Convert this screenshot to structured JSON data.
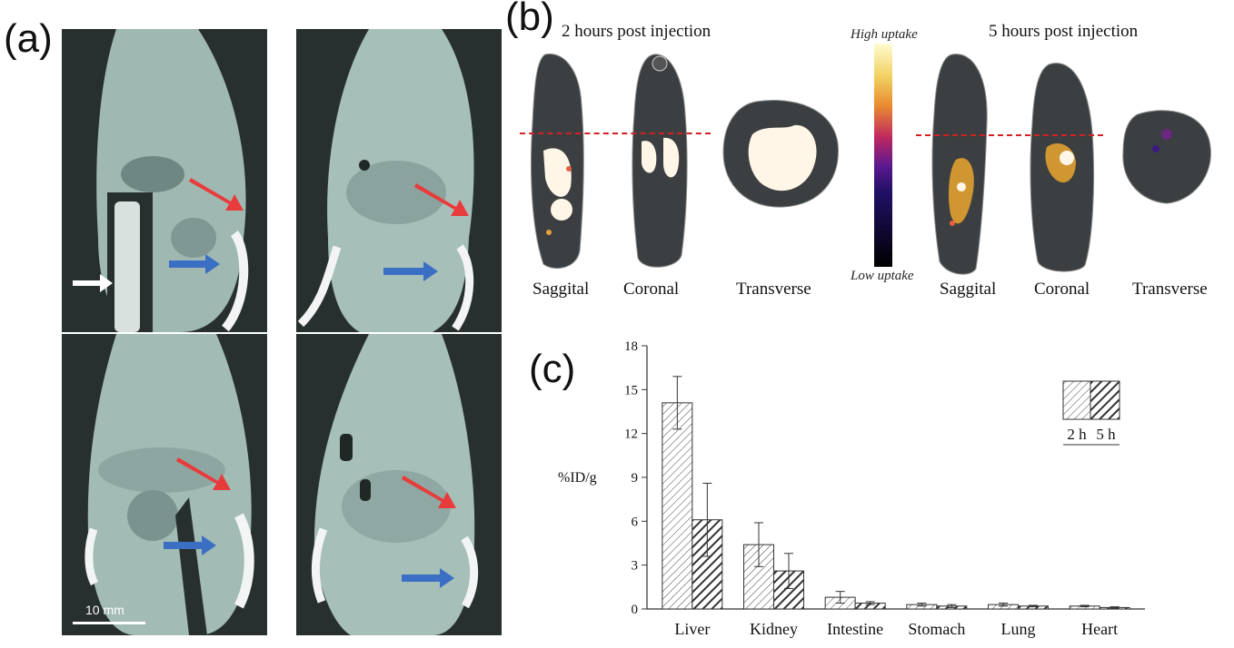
{
  "panels": {
    "a": {
      "letter": "(a)",
      "scale_bar_label": "10 mm"
    },
    "b": {
      "letter": "(b)",
      "left_title": "2 hours post injection",
      "right_title": "5 hours post injection",
      "colorbar_high": "High uptake",
      "colorbar_low": "Low uptake",
      "left_views": [
        "Saggital",
        "Coronal",
        "Transverse"
      ],
      "right_views": [
        "Saggital",
        "Coronal",
        "Transverse"
      ]
    },
    "c": {
      "letter": "(c)"
    }
  },
  "colors": {
    "red_arrow": "#e83b3b",
    "blue_arrow": "#3a6fc4",
    "white_arrow": "#ffffff",
    "guide_line": "#d42020",
    "ct_background": "#27302e",
    "tissue": "#9fb8b2"
  },
  "chart_data": {
    "type": "bar",
    "categories": [
      "Liver",
      "Kidney",
      "Intestine",
      "Stomach",
      "Lung",
      "Heart"
    ],
    "series": [
      {
        "name": "2 h",
        "values": [
          14.1,
          4.4,
          0.8,
          0.3,
          0.3,
          0.2
        ],
        "errors": [
          1.8,
          1.5,
          0.4,
          0.1,
          0.1,
          0.05
        ],
        "pattern": "light-hatch"
      },
      {
        "name": "5 h",
        "values": [
          6.1,
          2.6,
          0.4,
          0.2,
          0.2,
          0.1
        ],
        "errors": [
          2.5,
          1.2,
          0.1,
          0.1,
          0.05,
          0.05
        ],
        "pattern": "dark-hatch"
      }
    ],
    "ylabel": "%ID/g",
    "xlabel": "",
    "ylim": [
      0,
      18
    ],
    "yticks": [
      "0",
      "3",
      "6",
      "9",
      "12",
      "15",
      "18"
    ],
    "legend": {
      "placement": "top-right",
      "labels": [
        "2 h",
        "5 h"
      ]
    },
    "grid": false
  }
}
